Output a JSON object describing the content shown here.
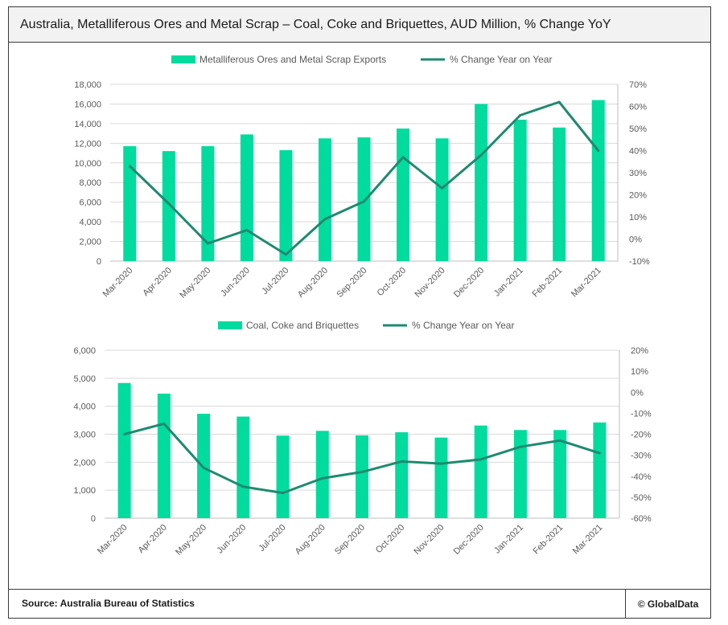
{
  "header": {
    "title": "Australia, Metalliferous Ores and Metal Scrap – Coal, Coke and Briquettes, AUD Million, % Change YoY"
  },
  "footer": {
    "source": "Source: Australia Bureau of Statistics",
    "brand": "© GlobalData"
  },
  "colors": {
    "bar": "#00DB9E",
    "line": "#1E8A70",
    "grid": "#D9D9D9",
    "axis_text": "#595959"
  },
  "chart_data": [
    {
      "type": "bar",
      "categories": [
        "Mar-2020",
        "Apr-2020",
        "May-2020",
        "Jun-2020",
        "Jul-2020",
        "Aug-2020",
        "Sep-2020",
        "Oct-2020",
        "Nov-2020",
        "Dec-2020",
        "Jan-2021",
        "Feb-2021",
        "Mar-2021"
      ],
      "series": [
        {
          "name": "Metalliferous Ores and Metal Scrap Exports",
          "type": "bar",
          "axis": "left",
          "values": [
            11700,
            11200,
            11700,
            12900,
            11300,
            12500,
            12600,
            13500,
            12500,
            16000,
            14400,
            13600,
            16400
          ]
        },
        {
          "name": "% Change Year on Year",
          "type": "line",
          "axis": "right",
          "values": [
            33,
            16,
            -2,
            4,
            -7,
            9,
            17,
            37,
            23,
            38,
            56,
            62,
            40
          ]
        }
      ],
      "ylim": [
        0,
        18000
      ],
      "yticks": [
        "0",
        "2,000",
        "4,000",
        "6,000",
        "8,000",
        "10,000",
        "12,000",
        "14,000",
        "16,000",
        "18,000"
      ],
      "y2lim": [
        -10,
        70
      ],
      "y2ticks": [
        "-10%",
        "0%",
        "10%",
        "20%",
        "30%",
        "40%",
        "50%",
        "60%",
        "70%"
      ],
      "legend": "top-center",
      "grid": true
    },
    {
      "type": "bar",
      "categories": [
        "Mar-2020",
        "Apr-2020",
        "May-2020",
        "Jun-2020",
        "Jul-2020",
        "Aug-2020",
        "Sep-2020",
        "Oct-2020",
        "Nov-2020",
        "Dec-2020",
        "Jan-2021",
        "Feb-2021",
        "Mar-2021"
      ],
      "series": [
        {
          "name": "Coal, Coke and Briquettes",
          "type": "bar",
          "axis": "left",
          "values": [
            4830,
            4450,
            3730,
            3630,
            2950,
            3120,
            2960,
            3070,
            2880,
            3310,
            3150,
            3150,
            3420
          ]
        },
        {
          "name": "% Change Year on Year",
          "type": "line",
          "axis": "right",
          "values": [
            -20,
            -15,
            -36,
            -45,
            -48,
            -41,
            -38,
            -33,
            -34,
            -32,
            -26,
            -23,
            -29
          ]
        }
      ],
      "ylim": [
        0,
        6000
      ],
      "yticks": [
        "0",
        "1,000",
        "2,000",
        "3,000",
        "4,000",
        "5,000",
        "6,000"
      ],
      "y2lim": [
        -60,
        20
      ],
      "y2ticks": [
        "-60%",
        "-50%",
        "-40%",
        "-30%",
        "-20%",
        "-10%",
        "0%",
        "10%",
        "20%"
      ],
      "legend": "top-center",
      "grid": true
    }
  ]
}
